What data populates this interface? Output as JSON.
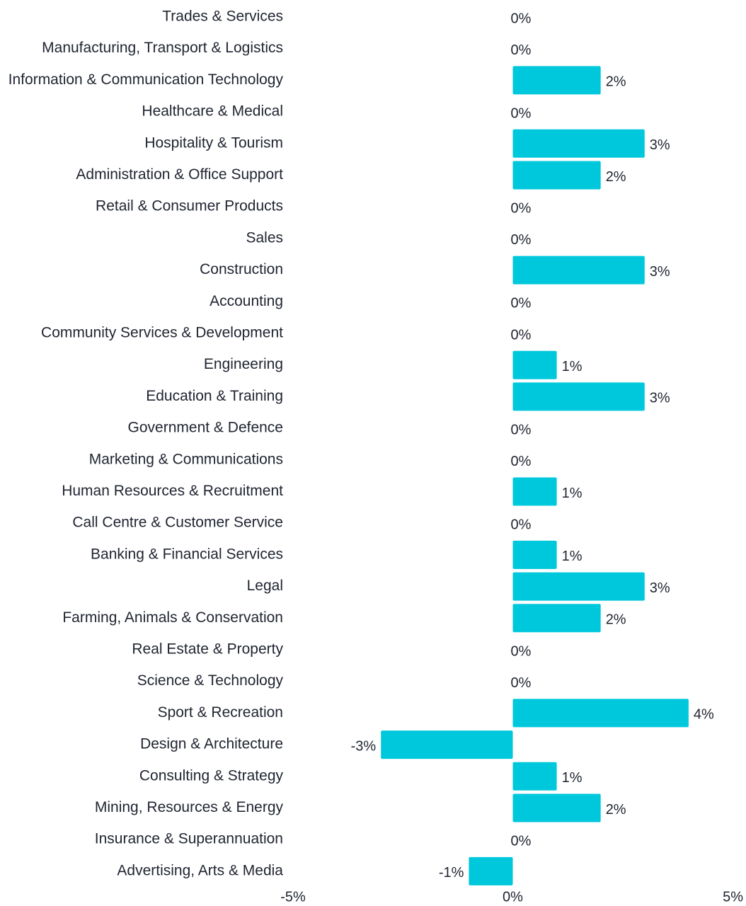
{
  "chart_data": {
    "type": "bar",
    "orientation": "horizontal",
    "bar_color": "#00c8dc",
    "text_color": "#1f2430",
    "xlim": [
      -5,
      5
    ],
    "x_ticks": [
      "-5%",
      "0%",
      "5%"
    ],
    "grid": false,
    "legend": "none",
    "categories": [
      "Trades & Services",
      "Manufacturing, Transport & Logistics",
      "Information & Communication Technology",
      "Healthcare & Medical",
      "Hospitality & Tourism",
      "Administration & Office Support",
      "Retail & Consumer Products",
      "Sales",
      "Construction",
      "Accounting",
      "Community Services & Development",
      "Engineering",
      "Education & Training",
      "Government & Defence",
      "Marketing & Communications",
      "Human Resources & Recruitment",
      "Call Centre & Customer Service",
      "Banking & Financial Services",
      "Legal",
      "Farming, Animals & Conservation",
      "Real Estate & Property",
      "Science & Technology",
      "Sport & Recreation",
      "Design & Architecture",
      "Consulting & Strategy",
      "Mining, Resources & Energy",
      "Insurance & Superannuation",
      "Advertising, Arts & Media"
    ],
    "values": [
      0,
      0,
      2,
      0,
      3,
      2,
      0,
      0,
      3,
      0,
      0,
      1,
      3,
      0,
      0,
      1,
      0,
      1,
      3,
      2,
      0,
      0,
      4,
      -3,
      1,
      2,
      0,
      -1
    ],
    "value_labels": [
      "0%",
      "0%",
      "2%",
      "0%",
      "3%",
      "2%",
      "0%",
      "0%",
      "3%",
      "0%",
      "0%",
      "1%",
      "3%",
      "0%",
      "0%",
      "1%",
      "0%",
      "1%",
      "3%",
      "2%",
      "0%",
      "0%",
      "4%",
      "-3%",
      "1%",
      "2%",
      "0%",
      "-1%"
    ]
  }
}
